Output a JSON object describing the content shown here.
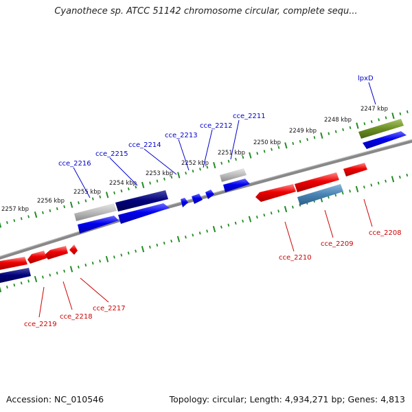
{
  "title": "Cyanothece sp. ATCC 51142 chromosome circular, complete sequ...",
  "footer": {
    "accession": "Accession: NC_010546",
    "summary": "Topology: circular; Length: 4,934,271 bp; Genes: 4,813"
  },
  "scale_labels": [
    "2247 kbp",
    "2248 kbp",
    "2249 kbp",
    "2250 kbp",
    "2251 kbp",
    "2252 kbp",
    "2253 kbp",
    "2254 kbp",
    "2255 kbp",
    "2256 kbp",
    "2257 kbp"
  ],
  "top_genes": [
    "lpxD",
    "cce_2211",
    "cce_2212",
    "cce_2213",
    "cce_2214",
    "cce_2215",
    "cce_2216"
  ],
  "bottom_genes": [
    "cce_2208",
    "cce_2209",
    "cce_2210",
    "cce_2217",
    "cce_2218",
    "cce_2219"
  ],
  "colors": {
    "forward_gene": "#0000ee",
    "reverse_gene": "#ee0000",
    "dark_blue": "#00007a",
    "grey": "#bbbbbb",
    "olive": "#6b8e23",
    "steel_blue": "#4682b4",
    "backbone": "#888888",
    "tick": "#228b22"
  }
}
